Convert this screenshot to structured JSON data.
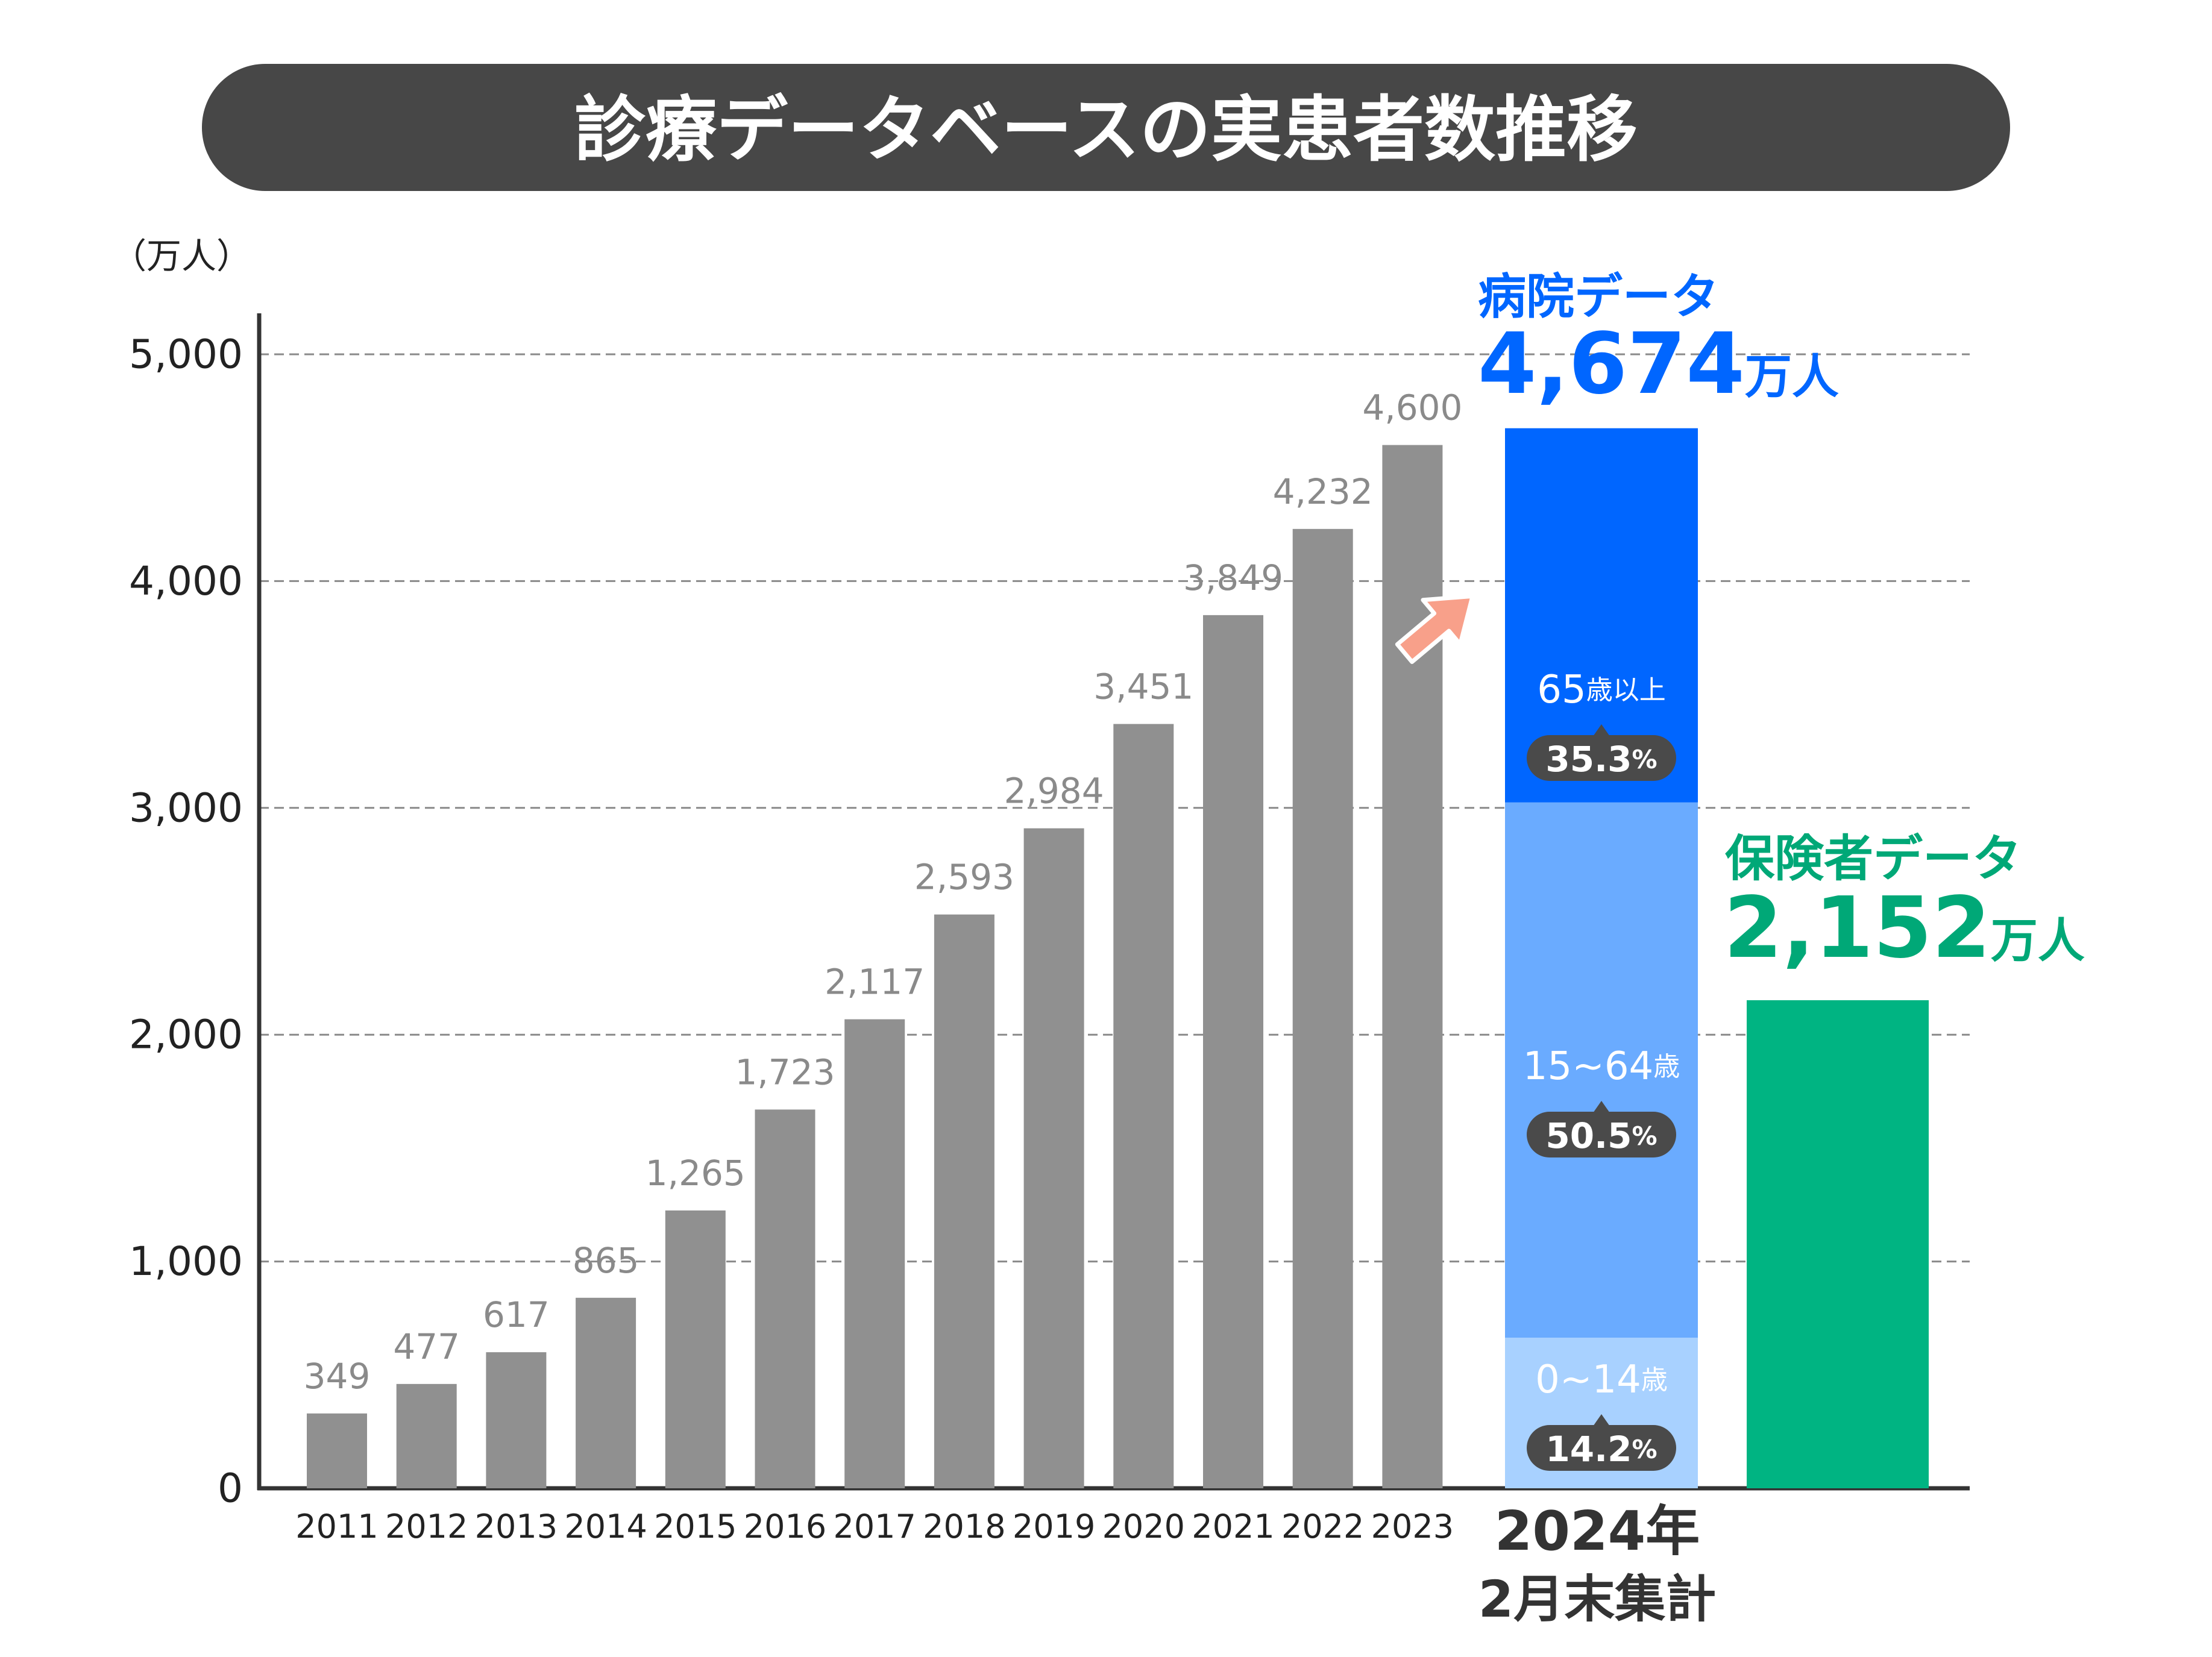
{
  "chart_data": {
    "type": "bar",
    "title": "診療データベースの実患者数推移",
    "unit_label": "（万人）",
    "ylim": [
      0,
      5000
    ],
    "yticks": [
      0,
      1000,
      2000,
      3000,
      4000,
      5000
    ],
    "ytick_labels": [
      "0",
      "1,000",
      "2,000",
      "3,000",
      "4,000",
      "5,000"
    ],
    "grid": true,
    "colors": {
      "historical": "#909090",
      "hospital_top": "#0066ff",
      "hospital_mid": "#6aabff",
      "hospital_low": "#a8d1ff",
      "insurer": "#00b482",
      "hospital_label": "#0066ff",
      "insurer_label": "#00a877",
      "arrow": "#f8a08a",
      "title_bg": "#474747",
      "badge_bg": "#4a4a4a"
    },
    "historical": {
      "categories": [
        "2011",
        "2012",
        "2013",
        "2014",
        "2015",
        "2016",
        "2017",
        "2018",
        "2019",
        "2020",
        "2021",
        "2022",
        "2023"
      ],
      "values": [
        349,
        477,
        617,
        865,
        1265,
        1723,
        2117,
        2593,
        2984,
        3451,
        3849,
        4232,
        4600
      ],
      "bar_heights": [
        330,
        460,
        600,
        840,
        1225,
        1670,
        2068,
        2530,
        2910,
        3370,
        3850,
        4230,
        4600
      ],
      "value_labels": [
        "349",
        "477",
        "617",
        "865",
        "1,265",
        "1,723",
        "2,117",
        "2,593",
        "2,984",
        "3,451",
        "3,849",
        "4,232",
        "4,600"
      ]
    },
    "hospital": {
      "label": "病院データ",
      "total_number": "4,674",
      "total_unit": "万人",
      "value": 4674,
      "segments": [
        {
          "age": "0~14",
          "age_unit": "歳",
          "pct": "14.2",
          "pct_unit": "%",
          "value": 664
        },
        {
          "age": "15~64",
          "age_unit": "歳",
          "pct": "50.5",
          "pct_unit": "%",
          "value": 2360
        },
        {
          "age": "65",
          "age_unit": "歳以上",
          "pct": "35.3",
          "pct_unit": "%",
          "value": 1650
        }
      ],
      "xlabel_line1": "2024年",
      "xlabel_line2": "2月末集計"
    },
    "insurer": {
      "label": "保険者データ",
      "total_number": "2,152",
      "total_unit": "万人",
      "value": 2152
    }
  }
}
